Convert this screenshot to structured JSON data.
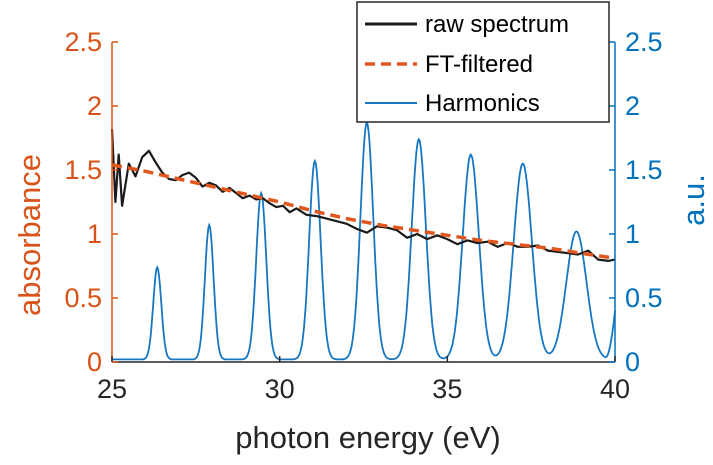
{
  "chart_data": {
    "type": "line",
    "xlabel": "photon energy (eV)",
    "ylabel_left": "absorbance",
    "ylabel_right": "a.u.",
    "xlim": [
      25,
      40
    ],
    "ylim_left": [
      0,
      2.5
    ],
    "ylim_right": [
      0,
      2.5
    ],
    "x_ticks": [
      "25",
      "30",
      "35",
      "40"
    ],
    "y_ticks_left": [
      "0",
      "0.5",
      "1",
      "1.5",
      "2",
      "2.5"
    ],
    "y_ticks_right": [
      "0",
      "0.5",
      "1",
      "1.5",
      "2",
      "2.5"
    ],
    "grid": false,
    "legend_position": "top-right",
    "colors": {
      "raw": "#1a1a1a",
      "filtered": "#e0561c",
      "harmonics": "#1777c2",
      "left_axis": "#d95319",
      "right_axis": "#0072bd"
    },
    "series": [
      {
        "name": "raw spectrum",
        "axis": "left",
        "style": "solid",
        "x": [
          25.0,
          25.1,
          25.2,
          25.3,
          25.5,
          25.7,
          25.9,
          26.1,
          26.3,
          26.5,
          26.7,
          26.9,
          27.1,
          27.3,
          27.5,
          27.7,
          27.9,
          28.1,
          28.3,
          28.5,
          28.7,
          28.9,
          29.1,
          29.3,
          29.5,
          29.7,
          29.9,
          30.1,
          30.3,
          30.5,
          30.8,
          31.1,
          31.4,
          31.7,
          32.0,
          32.3,
          32.6,
          32.9,
          33.2,
          33.5,
          33.8,
          34.1,
          34.4,
          34.7,
          35.0,
          35.3,
          35.6,
          35.9,
          36.2,
          36.5,
          36.8,
          37.1,
          37.4,
          37.7,
          38.0,
          38.3,
          38.6,
          38.9,
          39.2,
          39.5,
          39.8,
          40.0
        ],
        "y": [
          1.82,
          1.25,
          1.62,
          1.22,
          1.55,
          1.45,
          1.6,
          1.65,
          1.56,
          1.48,
          1.43,
          1.42,
          1.46,
          1.48,
          1.44,
          1.37,
          1.4,
          1.38,
          1.33,
          1.36,
          1.32,
          1.28,
          1.3,
          1.27,
          1.28,
          1.24,
          1.21,
          1.22,
          1.17,
          1.2,
          1.15,
          1.14,
          1.12,
          1.1,
          1.08,
          1.04,
          1.01,
          1.06,
          1.05,
          1.03,
          0.97,
          1.0,
          0.96,
          0.99,
          0.96,
          0.92,
          0.95,
          0.93,
          0.94,
          0.9,
          0.93,
          0.9,
          0.9,
          0.91,
          0.87,
          0.86,
          0.85,
          0.84,
          0.87,
          0.8,
          0.79,
          0.8
        ]
      },
      {
        "name": "FT-filtered",
        "axis": "left",
        "style": "dashed",
        "x": [
          25,
          26,
          27,
          28,
          29,
          30,
          31,
          32,
          33,
          34,
          35,
          36,
          37,
          38,
          39,
          40
        ],
        "y": [
          1.54,
          1.49,
          1.43,
          1.37,
          1.31,
          1.25,
          1.18,
          1.12,
          1.07,
          1.03,
          0.99,
          0.95,
          0.92,
          0.89,
          0.85,
          0.81
        ]
      },
      {
        "name": "Harmonics",
        "axis": "right",
        "style": "solid",
        "peaks": [
          {
            "center": 26.35,
            "height": 0.72,
            "width": 0.12
          },
          {
            "center": 27.9,
            "height": 1.05,
            "width": 0.13
          },
          {
            "center": 29.45,
            "height": 1.3,
            "width": 0.15
          },
          {
            "center": 31.05,
            "height": 1.55,
            "width": 0.17
          },
          {
            "center": 32.6,
            "height": 1.85,
            "width": 0.19
          },
          {
            "center": 34.15,
            "height": 1.72,
            "width": 0.21
          },
          {
            "center": 35.7,
            "height": 1.6,
            "width": 0.24
          },
          {
            "center": 37.25,
            "height": 1.53,
            "width": 0.27
          },
          {
            "center": 38.85,
            "height": 1.0,
            "width": 0.3
          }
        ],
        "end_value": 0.38
      }
    ]
  }
}
